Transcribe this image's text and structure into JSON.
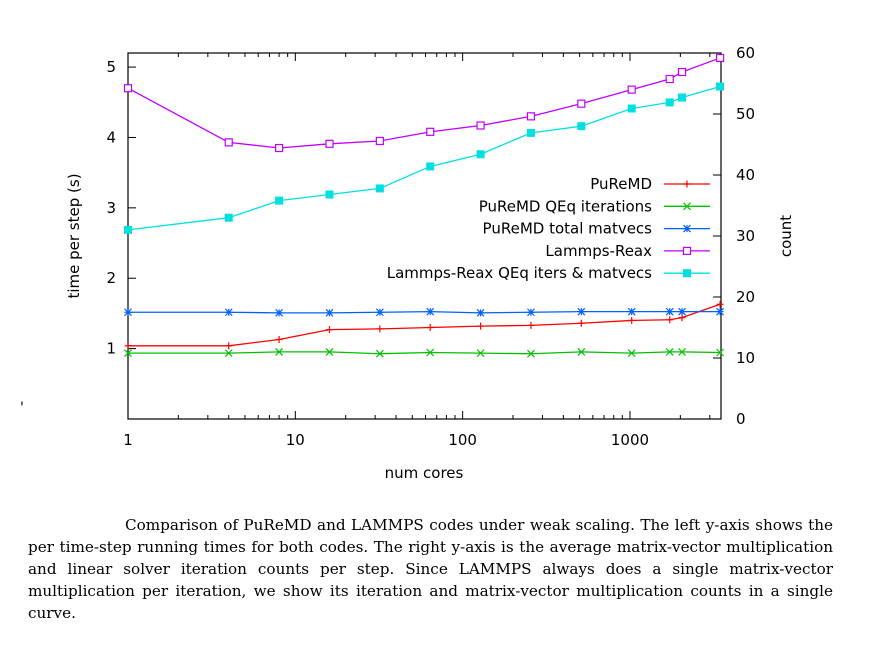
{
  "chart_data": {
    "type": "line",
    "xlabel": "num cores",
    "ylabel": "time per step (s)",
    "y2label": "count",
    "xscale": "log",
    "xlim": [
      1,
      3500
    ],
    "ylim": [
      0,
      5.2
    ],
    "y2lim": [
      0,
      60
    ],
    "x_ticks": [
      1,
      10,
      100,
      1000
    ],
    "x_tick_labels": [
      "1",
      "10",
      "100",
      "1000"
    ],
    "y_ticks": [
      1,
      2,
      3,
      4,
      5
    ],
    "y_tick_labels": [
      "1",
      "2",
      "3",
      "4",
      "5"
    ],
    "y2_ticks": [
      0,
      10,
      20,
      30,
      40,
      50,
      60
    ],
    "y2_tick_labels": [
      "0",
      "10",
      "20",
      "30",
      "40",
      "50",
      "60"
    ],
    "legend_position": "right",
    "grid": false,
    "series": [
      {
        "name": "PuReMD",
        "axis": "left",
        "color": "#ff0000",
        "marker": "plus",
        "x": [
          1,
          4,
          8,
          16,
          32,
          64,
          128,
          256,
          512,
          1024,
          1728,
          2048,
          3456
        ],
        "y": [
          1.04,
          1.04,
          1.13,
          1.27,
          1.28,
          1.3,
          1.32,
          1.33,
          1.36,
          1.4,
          1.41,
          1.44,
          1.63
        ]
      },
      {
        "name": "PuReMD QEq iterations",
        "axis": "right",
        "color": "#00c000",
        "marker": "x",
        "x": [
          1,
          4,
          8,
          16,
          32,
          64,
          128,
          256,
          512,
          1024,
          1728,
          2048,
          3456
        ],
        "y": [
          10.8,
          10.8,
          11.0,
          11.0,
          10.7,
          10.9,
          10.8,
          10.7,
          11.0,
          10.8,
          11.0,
          11.0,
          10.9
        ]
      },
      {
        "name": "PuReMD total matvecs",
        "axis": "right",
        "color": "#0060ff",
        "marker": "star",
        "x": [
          1,
          4,
          8,
          16,
          32,
          64,
          128,
          256,
          512,
          1024,
          1728,
          2048,
          3456
        ],
        "y": [
          17.5,
          17.5,
          17.4,
          17.4,
          17.5,
          17.6,
          17.4,
          17.5,
          17.6,
          17.6,
          17.6,
          17.6,
          17.6
        ]
      },
      {
        "name": "Lammps-Reax",
        "axis": "left",
        "color": "#c000ff",
        "marker": "square-open",
        "x": [
          1,
          4,
          8,
          16,
          32,
          64,
          128,
          256,
          512,
          1024,
          1728,
          2048,
          3456
        ],
        "y": [
          4.7,
          3.93,
          3.85,
          3.91,
          3.95,
          4.08,
          4.17,
          4.3,
          4.48,
          4.68,
          4.83,
          4.93,
          5.13
        ]
      },
      {
        "name": "Lammps-Reax QEq iters & matvecs",
        "axis": "right",
        "color": "#00e0e0",
        "marker": "square-filled",
        "x": [
          1,
          4,
          8,
          16,
          32,
          64,
          128,
          256,
          512,
          1024,
          1728,
          2048,
          3456
        ],
        "y": [
          31.0,
          33.0,
          35.8,
          36.8,
          37.8,
          41.4,
          43.4,
          46.9,
          48.0,
          50.9,
          51.9,
          52.7,
          54.5
        ]
      }
    ]
  },
  "caption": "Comparison of PuReMD and LAMMPS codes under weak scaling. The left y-axis shows the per time-step running times for both codes. The right y-axis is the average matrix-vector multiplication and linear solver iteration counts per step. Since LAMMPS always does a single matrix-vector multiplication per iteration, we show its iteration and matrix-vector multiplication counts in a single curve.",
  "stray_mark": "'"
}
